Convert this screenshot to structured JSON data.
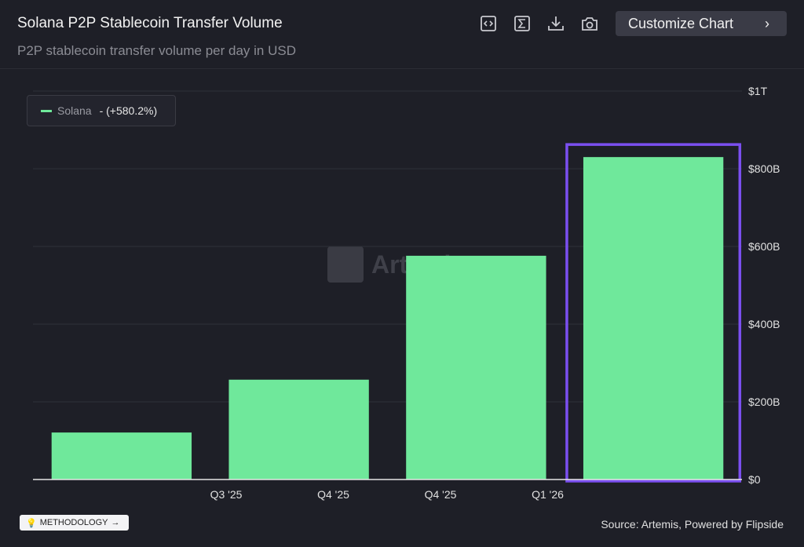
{
  "header": {
    "title": "Solana P2P Stablecoin Transfer Volume",
    "subtitle": "P2P stablecoin transfer volume per day in USD",
    "customize_label": "Customize Chart",
    "icons": [
      "embed-icon",
      "sigma-icon",
      "download-icon",
      "camera-icon"
    ]
  },
  "legend": {
    "name": "Solana",
    "change": "- (+580.2%)",
    "color": "#6fe89b"
  },
  "watermark": "Artemis",
  "footer": {
    "methodology": "METHODOLOGY",
    "source": "Source: Artemis, Powered by Flipside"
  },
  "chart_data": {
    "type": "bar",
    "title": "Solana P2P Stablecoin Transfer Volume",
    "series": [
      {
        "name": "Solana",
        "values": [
          121,
          257,
          576,
          830
        ]
      }
    ],
    "unit": "USD billions",
    "x_tick_labels": [
      "Q3 '25",
      "Q4 '25",
      "Q4 '25",
      "Q1 '26"
    ],
    "y_ticks": [
      0,
      200,
      400,
      600,
      800,
      1000
    ],
    "y_tick_labels": [
      "$0",
      "$200B",
      "$400B",
      "$600B",
      "$800B",
      "$1T"
    ],
    "ylim": [
      0,
      1000
    ],
    "grid": true,
    "legend_position": "top-left",
    "bar_color": "#6fe89b",
    "highlight_color": "#7b4ff0",
    "highlighted_bar": 3
  }
}
